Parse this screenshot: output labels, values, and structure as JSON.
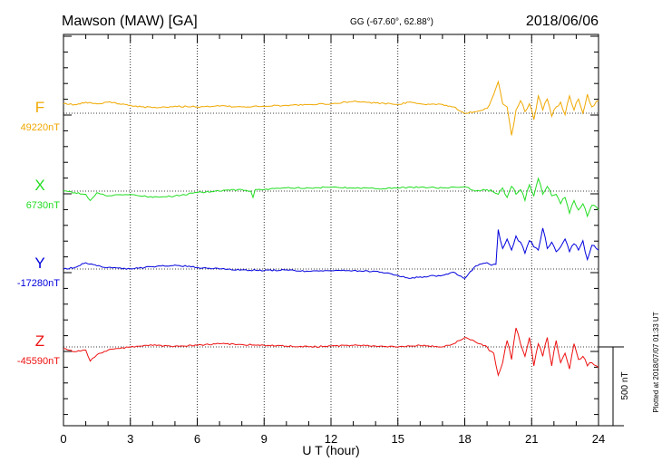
{
  "header": {
    "station": "Mawson (MAW)  [GA]",
    "coords": "GG (-67.60°,  62.88°)",
    "date": "2018/06/06"
  },
  "footer": {
    "plotted": "Plotted at 2018/07/07 01:33 UT"
  },
  "chart_data": {
    "type": "line",
    "xlabel": "U T (hour)",
    "xlim": [
      0,
      24
    ],
    "xticks": [
      "0",
      "3",
      "6",
      "9",
      "12",
      "15",
      "18",
      "21",
      "24"
    ],
    "grid": true,
    "scale_bar": {
      "label": "500 nT",
      "nT": 500
    },
    "series": [
      {
        "name": "F",
        "baseline_label": "49220nT",
        "color": "#f0a800",
        "x": [
          0,
          0.5,
          1,
          1.5,
          2,
          2.5,
          3,
          3.5,
          4,
          5,
          6,
          7,
          8,
          9,
          10,
          11,
          12,
          13,
          14,
          15,
          15.5,
          16,
          17,
          17.5,
          18,
          18.5,
          19,
          19.3,
          19.5,
          19.7,
          19.9,
          20.1,
          20.3,
          20.5,
          20.7,
          20.9,
          21.1,
          21.3,
          21.5,
          21.7,
          21.9,
          22.1,
          22.3,
          22.5,
          22.7,
          22.9,
          23.1,
          23.3,
          23.5,
          23.7,
          24
        ],
        "values": [
          60,
          55,
          70,
          60,
          70,
          60,
          50,
          40,
          35,
          45,
          40,
          45,
          40,
          45,
          50,
          55,
          60,
          75,
          65,
          55,
          70,
          60,
          55,
          40,
          0,
          10,
          30,
          120,
          200,
          60,
          40,
          -140,
          20,
          80,
          10,
          60,
          -40,
          110,
          20,
          90,
          -20,
          40,
          70,
          -10,
          110,
          20,
          90,
          0,
          120,
          40,
          80
        ]
      },
      {
        "name": "X",
        "baseline_label": "6730nT",
        "color": "#22dd22",
        "x": [
          0,
          0.5,
          1,
          1.2,
          1.5,
          2,
          3,
          4,
          5,
          6,
          7,
          8,
          8.4,
          8.5,
          8.6,
          9,
          10,
          11,
          12,
          13,
          14,
          15,
          16,
          17,
          18,
          18.5,
          19,
          19.5,
          19.7,
          19.9,
          20.1,
          20.3,
          20.5,
          20.7,
          20.9,
          21.1,
          21.3,
          21.5,
          21.7,
          21.9,
          22.1,
          22.3,
          22.5,
          22.7,
          22.9,
          23.1,
          23.3,
          23.5,
          23.7,
          24
        ],
        "values": [
          0,
          -10,
          -20,
          -60,
          -10,
          -30,
          -20,
          -40,
          -30,
          -10,
          0,
          10,
          0,
          -40,
          10,
          10,
          20,
          20,
          25,
          20,
          15,
          20,
          25,
          20,
          30,
          0,
          10,
          -20,
          20,
          -40,
          30,
          -20,
          10,
          -60,
          40,
          -30,
          80,
          -20,
          30,
          -30,
          -20,
          -80,
          -40,
          -140,
          -60,
          -120,
          -80,
          -160,
          -90,
          -120
        ]
      },
      {
        "name": "Y",
        "baseline_label": "-17280nT",
        "color": "#0000dd",
        "x": [
          0,
          0.5,
          1,
          1.5,
          2,
          3,
          4,
          5,
          6,
          7,
          8,
          9,
          10,
          11,
          12,
          13,
          14,
          15,
          15.5,
          16,
          17,
          17.5,
          18,
          18.5,
          19,
          19.4,
          19.5,
          19.7,
          19.9,
          20.1,
          20.3,
          20.5,
          20.7,
          20.9,
          21.1,
          21.3,
          21.5,
          21.7,
          21.9,
          22.1,
          22.3,
          22.5,
          22.7,
          22.9,
          23.1,
          23.3,
          23.5,
          23.7,
          24
        ],
        "values": [
          0,
          10,
          40,
          20,
          10,
          0,
          15,
          25,
          10,
          0,
          -5,
          -10,
          -5,
          -15,
          -10,
          -10,
          -15,
          -40,
          -60,
          -50,
          -40,
          -20,
          -60,
          20,
          40,
          30,
          250,
          130,
          190,
          120,
          210,
          170,
          100,
          180,
          140,
          120,
          260,
          130,
          170,
          110,
          140,
          190,
          110,
          160,
          120,
          180,
          60,
          150,
          120
        ]
      },
      {
        "name": "Z",
        "baseline_label": "-45590nT",
        "color": "#ee1111",
        "x": [
          0,
          0.5,
          1,
          1.2,
          1.5,
          2,
          3,
          4,
          5,
          6,
          7,
          8,
          9,
          10,
          11,
          12,
          13,
          14,
          15,
          16,
          17,
          17.5,
          18,
          18.5,
          19,
          19.3,
          19.5,
          19.7,
          19.9,
          20.1,
          20.3,
          20.5,
          20.7,
          20.9,
          21.1,
          21.3,
          21.5,
          21.7,
          21.9,
          22.1,
          22.3,
          22.5,
          22.7,
          22.9,
          23.1,
          23.3,
          23.5,
          23.7,
          24
        ],
        "values": [
          -10,
          -30,
          -20,
          -90,
          -50,
          -20,
          0,
          10,
          5,
          10,
          20,
          15,
          10,
          5,
          0,
          5,
          10,
          5,
          0,
          10,
          0,
          20,
          60,
          30,
          0,
          -40,
          -180,
          -100,
          40,
          -80,
          120,
          20,
          -60,
          60,
          -120,
          20,
          -60,
          60,
          -120,
          40,
          -100,
          -40,
          -140,
          20,
          -80,
          -60,
          -120,
          -100,
          -130
        ]
      }
    ]
  }
}
